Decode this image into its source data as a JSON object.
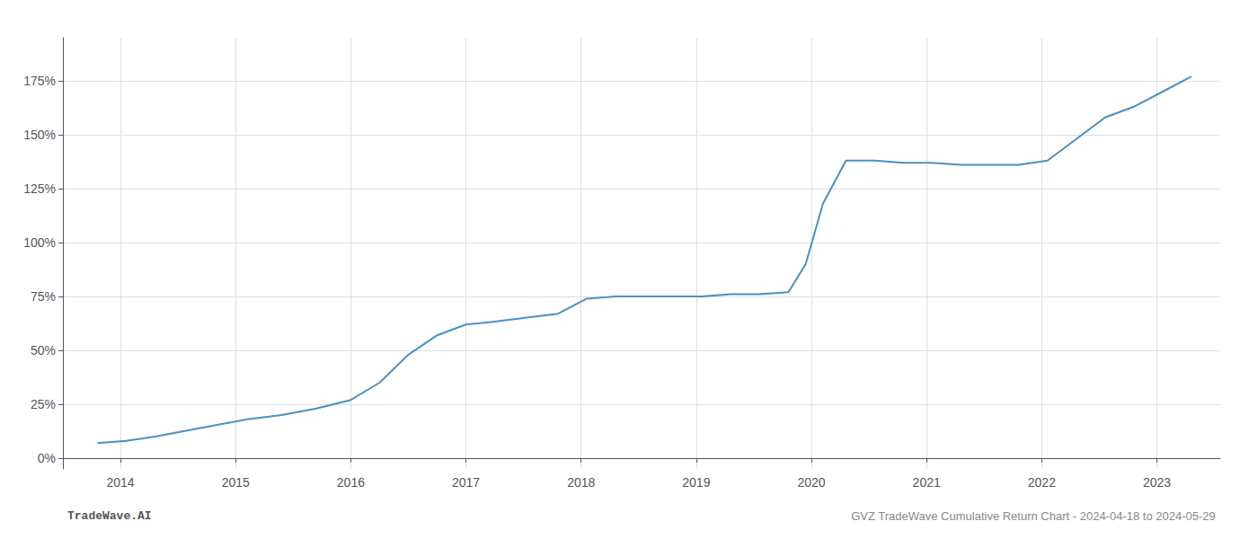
{
  "chart_data": {
    "type": "line",
    "title": "GVZ TradeWave Cumulative Return Chart - 2024-04-18 to 2024-05-29",
    "annotations": [
      "TradeWave.AI"
    ],
    "color": "#4a90c4",
    "x": [
      2013.8,
      2014.05,
      2014.3,
      2014.6,
      2014.9,
      2015.1,
      2015.4,
      2015.7,
      2016.0,
      2016.25,
      2016.5,
      2016.75,
      2017.0,
      2017.2,
      2017.5,
      2017.8,
      2018.05,
      2018.3,
      2018.55,
      2018.8,
      2019.05,
      2019.3,
      2019.55,
      2019.8,
      2019.95,
      2020.1,
      2020.3,
      2020.55,
      2020.8,
      2021.05,
      2021.3,
      2021.55,
      2021.8,
      2022.05,
      2022.3,
      2022.55,
      2022.8,
      2023.05,
      2023.3
    ],
    "values": [
      7,
      8,
      10,
      13,
      16,
      18,
      20,
      23,
      27,
      35,
      48,
      57,
      62,
      63,
      65,
      67,
      74,
      75,
      75,
      75,
      75,
      76,
      76,
      77,
      90,
      118,
      138,
      138,
      137,
      137,
      136,
      136,
      136,
      138,
      148,
      158,
      163,
      170,
      177
    ],
    "xlim": [
      2013.5,
      2023.55
    ],
    "ylim": [
      -5,
      195
    ],
    "xticks": [
      2014,
      2015,
      2016,
      2017,
      2018,
      2019,
      2020,
      2021,
      2022,
      2023
    ],
    "yticks": [
      {
        "value": 0,
        "label": "0%"
      },
      {
        "value": 25,
        "label": "25%"
      },
      {
        "value": 50,
        "label": "50%"
      },
      {
        "value": 75,
        "label": "75%"
      },
      {
        "value": 100,
        "label": "100%"
      },
      {
        "value": 125,
        "label": "125%"
      },
      {
        "value": 150,
        "label": "150%"
      },
      {
        "value": 175,
        "label": "175%"
      }
    ],
    "grid": true
  }
}
